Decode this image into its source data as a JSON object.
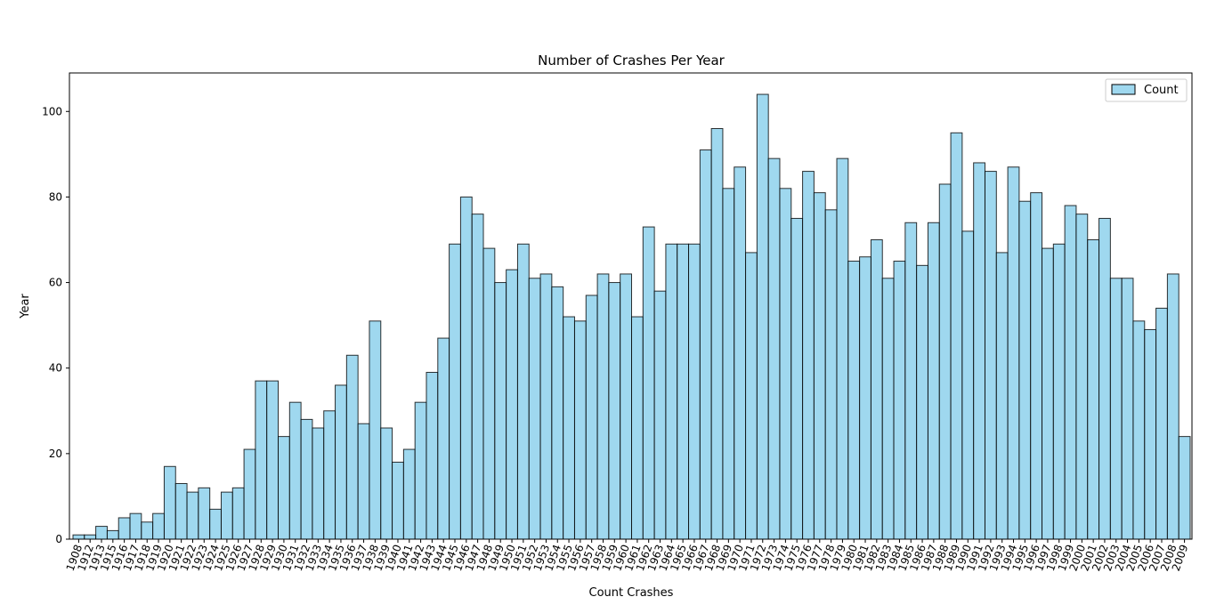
{
  "chart_data": {
    "type": "bar",
    "title": "Number of Crashes Per Year",
    "xlabel": "Count Crashes",
    "ylabel": "Year",
    "ylim": [
      0,
      109
    ],
    "yticks": [
      0,
      20,
      40,
      60,
      80,
      100
    ],
    "legend": {
      "placement": "top-right"
    },
    "series": [
      {
        "name": "Count",
        "color": "#87CEEB",
        "edge_color": "#000000",
        "values": [
          1,
          1,
          3,
          2,
          5,
          6,
          4,
          6,
          17,
          13,
          11,
          12,
          7,
          11,
          12,
          21,
          37,
          37,
          24,
          32,
          28,
          26,
          30,
          36,
          43,
          27,
          51,
          26,
          18,
          21,
          32,
          39,
          47,
          69,
          80,
          76,
          68,
          60,
          63,
          69,
          61,
          62,
          59,
          52,
          51,
          57,
          62,
          60,
          62,
          52,
          73,
          58,
          69,
          69,
          69,
          91,
          96,
          82,
          87,
          67,
          104,
          89,
          82,
          75,
          86,
          81,
          77,
          89,
          65,
          66,
          70,
          61,
          65,
          74,
          64,
          74,
          83,
          95,
          72,
          88,
          86,
          67,
          87,
          79,
          81,
          68,
          69,
          78,
          76,
          70,
          75,
          61,
          61,
          51,
          49,
          54,
          62,
          24
        ]
      }
    ],
    "categories": [
      "1908",
      "1912",
      "1913",
      "1915",
      "1916",
      "1917",
      "1918",
      "1919",
      "1920",
      "1921",
      "1922",
      "1923",
      "1924",
      "1925",
      "1926",
      "1927",
      "1928",
      "1929",
      "1930",
      "1931",
      "1932",
      "1933",
      "1934",
      "1935",
      "1936",
      "1937",
      "1938",
      "1939",
      "1940",
      "1941",
      "1942",
      "1943",
      "1944",
      "1945",
      "1946",
      "1947",
      "1948",
      "1949",
      "1950",
      "1951",
      "1952",
      "1953",
      "1954",
      "1955",
      "1956",
      "1957",
      "1958",
      "1959",
      "1960",
      "1961",
      "1962",
      "1963",
      "1964",
      "1965",
      "1966",
      "1967",
      "1968",
      "1969",
      "1970",
      "1971",
      "1972",
      "1973",
      "1974",
      "1975",
      "1976",
      "1977",
      "1978",
      "1979",
      "1980",
      "1981",
      "1982",
      "1983",
      "1984",
      "1985",
      "1986",
      "1987",
      "1988",
      "1989",
      "1990",
      "1991",
      "1992",
      "1993",
      "1994",
      "1995",
      "1996",
      "1997",
      "1998",
      "1999",
      "2000",
      "2001",
      "2002",
      "2003",
      "2004",
      "2005",
      "2006",
      "2007",
      "2008",
      "2009"
    ]
  }
}
